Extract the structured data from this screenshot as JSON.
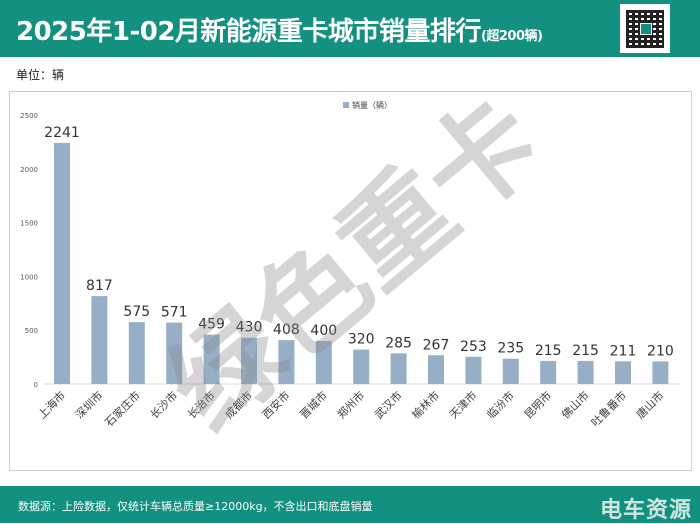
{
  "header": {
    "title": "2025年1-02月新能源重卡城市销量排行",
    "title_suffix": "(超200辆)"
  },
  "unit_label": "单位：辆",
  "footer": {
    "source": "数据源：上险数据，仅统计车辆总质量≥12000kg，不含出口和底盘销量",
    "logo": "电车资源"
  },
  "watermark": "绿色重卡",
  "colors": {
    "header": "#13907f",
    "bar": "#97afc6"
  },
  "chart_data": {
    "type": "bar",
    "title": "",
    "legend": {
      "label": "销量（辆）",
      "placement": "top-center"
    },
    "categories": [
      "上海市",
      "深圳市",
      "石家庄市",
      "长沙市",
      "长治市",
      "成都市",
      "西安市",
      "晋城市",
      "郑州市",
      "武汉市",
      "榆林市",
      "天津市",
      "临汾市",
      "昆明市",
      "佛山市",
      "吐鲁番市",
      "唐山市"
    ],
    "values": [
      2241,
      817,
      575,
      571,
      459,
      430,
      408,
      400,
      320,
      285,
      267,
      253,
      235,
      215,
      215,
      211,
      210
    ],
    "ylim": [
      0,
      2500
    ],
    "yticks": [
      0,
      500,
      1000,
      1500,
      2000,
      2500
    ],
    "xlabel": "",
    "ylabel": "",
    "grid": false
  }
}
